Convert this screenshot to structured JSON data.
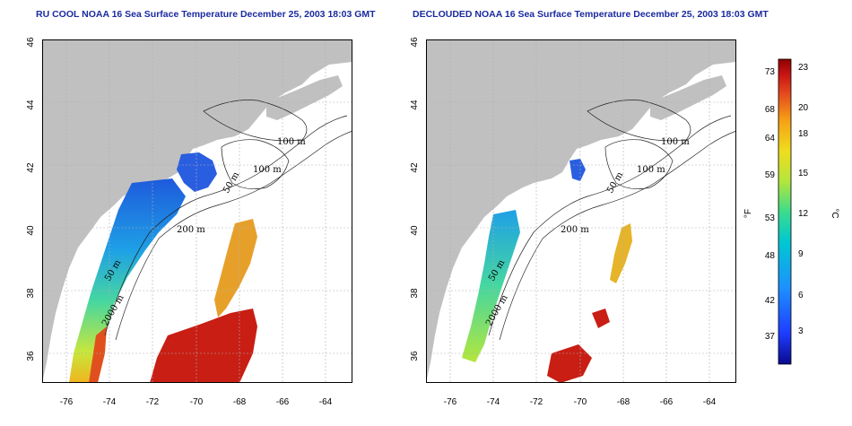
{
  "panels": [
    {
      "title": "RU COOL NOAA 16 Sea Surface Temperature December 25, 2003 18:03 GMT",
      "contour_labels": [
        "100 m",
        "100 m",
        "50 m",
        "200 m",
        "50 m",
        "2000 m"
      ]
    },
    {
      "title": "DECLOUDED NOAA 16 Sea Surface Temperature December 25, 2003 18:03 GMT",
      "contour_labels": [
        "100 m",
        "100 m",
        "50 m",
        "200 m",
        "50 m",
        "2000 m"
      ]
    }
  ],
  "axes": {
    "x_ticks": [
      "-76",
      "-74",
      "-72",
      "-70",
      "-68",
      "-66",
      "-64"
    ],
    "y_ticks": [
      "46",
      "44",
      "42",
      "40",
      "38",
      "36"
    ]
  },
  "colorbar": {
    "fahrenheit_label": "°F",
    "celsius_label": "°C",
    "fahrenheit_ticks": [
      "73",
      "68",
      "64",
      "59",
      "53",
      "48",
      "42",
      "37"
    ],
    "celsius_ticks": [
      "23",
      "20",
      "18",
      "15",
      "12",
      "9",
      "6",
      "3"
    ],
    "colors": [
      "#0a0a8c",
      "#1e3cff",
      "#1e90ff",
      "#00c8d2",
      "#3cdc8c",
      "#b4e63c",
      "#f0dc1e",
      "#f5a014",
      "#e6501e",
      "#c81414",
      "#8c0000"
    ]
  },
  "colors": {
    "land": "#c0c0c0",
    "title": "#1a2aa0",
    "grid": "#b0b0b0"
  }
}
